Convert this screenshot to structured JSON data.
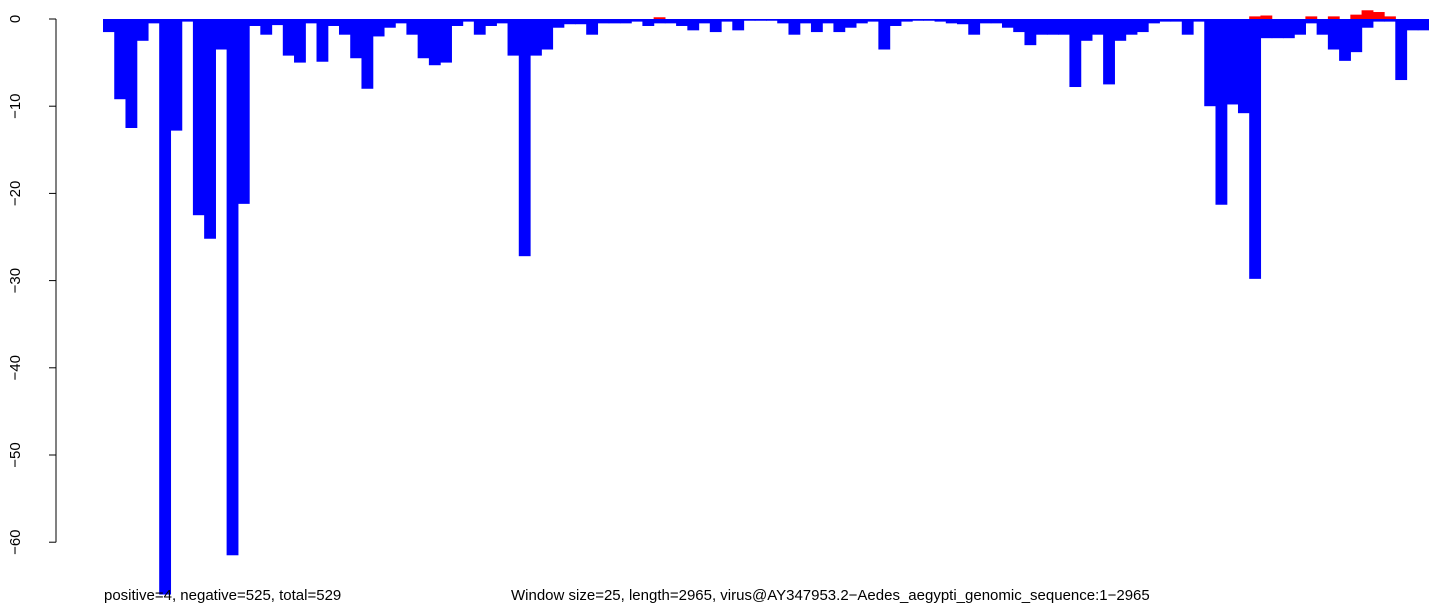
{
  "chart_data": {
    "type": "bar",
    "title": "",
    "xlabel": "",
    "ylabel": "",
    "ylim": [
      -66,
      1.5
    ],
    "yticks": [
      0,
      -10,
      -20,
      -30,
      -40,
      -50,
      -60
    ],
    "grid": false,
    "legend": "none",
    "colors": {
      "negative": "#0000ff",
      "positive": "#ff0000"
    },
    "captions": {
      "left": "positive=4, negative=525, total=529",
      "right": "Window size=25, length=2965, virus@AY347953.2−Aedes_aegypti_genomic_sequence:1−2965"
    },
    "series": [
      {
        "values": [
          -1.5,
          -9.2,
          -12.5,
          -2.5,
          -0.5,
          -66,
          -12.8,
          -0.3,
          -22.5,
          -25.2,
          -3.5,
          -61.5,
          -21.2,
          -0.8,
          -1.8,
          -0.7,
          -4.2,
          -5.0,
          -0.5,
          -4.9,
          -0.8,
          -1.8,
          -4.5,
          -8.0,
          -2.0,
          -1.0,
          -0.5,
          -1.8,
          -4.5,
          -5.3,
          -5.0,
          -0.8,
          -0.3,
          -1.8,
          -0.8,
          -0.5,
          -4.2,
          -27.2,
          -4.2,
          -3.5,
          -1.0,
          -0.6,
          -0.6,
          -1.8,
          -0.5,
          -0.5,
          -0.5,
          -0.3,
          -0.8,
          -0.5,
          -0.5,
          -0.8,
          -1.3,
          -0.5,
          -1.5,
          -0.3,
          -1.3,
          -0.2,
          -0.2,
          -0.2,
          -0.5,
          -1.8,
          -0.5,
          -1.5,
          -0.5,
          -1.5,
          -1.0,
          -0.5,
          -0.3,
          -3.5,
          -0.8,
          -0.3,
          -0.2,
          -0.2,
          -0.3,
          -0.5,
          -0.6,
          -1.8,
          -0.5,
          -0.5,
          -1.0,
          -1.5,
          -3.0,
          -1.8,
          -1.8,
          -1.8,
          -7.8,
          -2.5,
          -1.8,
          -7.5,
          -2.5,
          -1.8,
          -1.5,
          -0.5,
          -0.3,
          -0.3,
          -1.8,
          -0.3,
          -10.0,
          -21.3,
          -9.8,
          -10.8,
          -29.8,
          -2.2,
          -2.2,
          -2.2,
          -1.8,
          -0.5,
          -1.8,
          -3.5,
          -4.8,
          -3.8,
          -1.0,
          -0.3,
          -0.3,
          -7.0,
          -1.3,
          -1.3
        ]
      }
    ],
    "positive_overlays": [
      {
        "index": 49,
        "value": 0.2
      },
      {
        "index": 102,
        "value": 0.3
      },
      {
        "index": 103,
        "value": 0.4
      },
      {
        "index": 107,
        "value": 0.3
      },
      {
        "index": 109,
        "value": 0.3
      },
      {
        "index": 111,
        "value": 0.5
      },
      {
        "index": 112,
        "value": 1.0
      },
      {
        "index": 113,
        "value": 0.8
      },
      {
        "index": 114,
        "value": 0.3
      }
    ]
  }
}
